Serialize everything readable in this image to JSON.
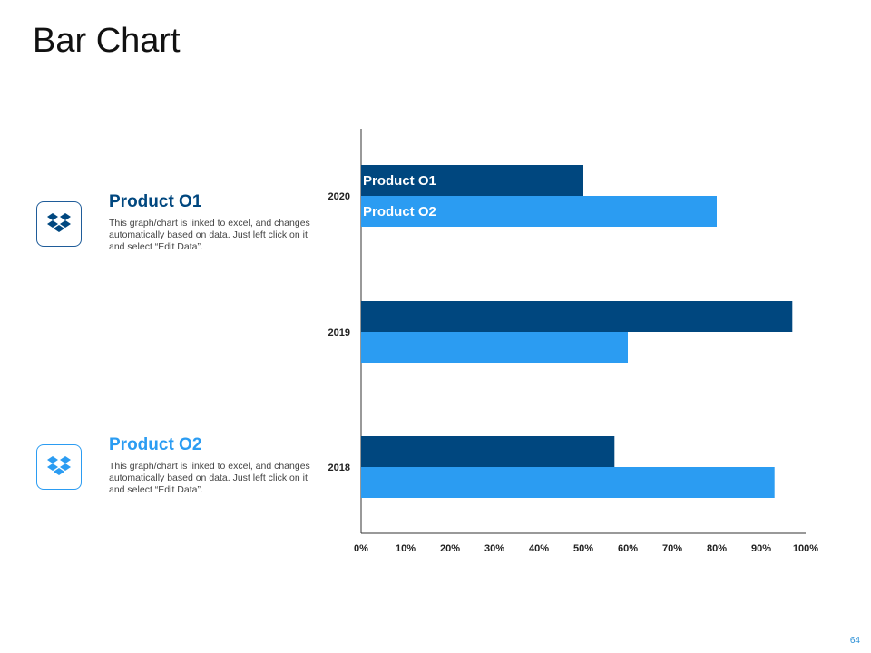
{
  "page": {
    "title": "Bar Chart",
    "page_number": "64"
  },
  "legend": [
    {
      "title": "Product O1",
      "description": "This graph/chart is linked to excel, and changes automatically based on data. Just left click on it and select “Edit Data”.",
      "icon": "dropbox-icon",
      "color": "#00477f"
    },
    {
      "title": "Product O2",
      "description": "This graph/chart is linked to excel, and changes automatically based on data. Just left click on it and select “Edit Data”.",
      "icon": "dropbox-icon",
      "color": "#2b9cf2"
    }
  ],
  "chart_data": {
    "type": "bar",
    "orientation": "horizontal",
    "categories": [
      "2020",
      "2019",
      "2018"
    ],
    "series": [
      {
        "name": "Product O1",
        "values": [
          50,
          97,
          57
        ],
        "color": "#00477f"
      },
      {
        "name": "Product O2",
        "values": [
          80,
          60,
          93
        ],
        "color": "#2b9cf2"
      }
    ],
    "xlim": [
      0,
      100
    ],
    "xticks": [
      "0%",
      "10%",
      "20%",
      "30%",
      "40%",
      "50%",
      "60%",
      "70%",
      "80%",
      "90%",
      "100%"
    ],
    "series_labels_on_bars": [
      "Product O1",
      "Product O2"
    ],
    "grid": false,
    "title": "",
    "xlabel": "",
    "ylabel": ""
  }
}
